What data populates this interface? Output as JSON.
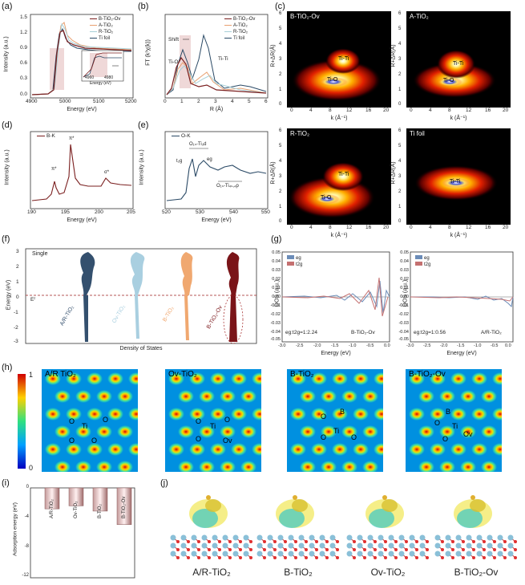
{
  "panel_labels": [
    "(a)",
    "(b)",
    "(c)",
    "(d)",
    "(e)",
    "(f)",
    "(g)",
    "(h)",
    "(i)",
    "(j)"
  ],
  "panel_a": {
    "xlabel": "Energy (eV)",
    "ylabel": "Intensity (a.u.)",
    "xticks": [
      "4900",
      "5000",
      "5100",
      "5200"
    ],
    "yticks": [
      "0.0",
      "0.3",
      "0.6",
      "0.9",
      "1.2",
      "1.5"
    ],
    "legend": [
      "B-TiO₂-Ov",
      "A-TiO₂",
      "R-TiO₂",
      "Ti foil"
    ],
    "inset_xticks": [
      "4960",
      "4980"
    ],
    "inset_xlabel": "Energy (eV)",
    "colors": [
      "#7a1f1f",
      "#e8a070",
      "#a8d0d8",
      "#2b4a66"
    ]
  },
  "panel_b": {
    "xlabel": "R (Å)",
    "ylabel": "FT (k³χ(k))",
    "xticks": [
      "0",
      "1",
      "2",
      "3",
      "4",
      "5",
      "6"
    ],
    "legend": [
      "B-TiO₂-Ov",
      "A-TiO₂",
      "R-TiO₂",
      "Ti foil"
    ],
    "annotations": [
      "Shift",
      "Ti-O",
      "Ti-Ti"
    ]
  },
  "panel_c": {
    "maps": [
      {
        "title": "B-TiO₂-Ov",
        "labels": [
          "Ti-Ti",
          "Ti-O"
        ]
      },
      {
        "title": "A-TiO₂",
        "labels": [
          "Ti-Ti",
          "Ti-O"
        ]
      },
      {
        "title": "R-TiO₂",
        "labels": [
          "Ti-Ti",
          "Ti-O"
        ]
      },
      {
        "title": "Ti foil",
        "labels": [
          "Ti-Ti"
        ]
      }
    ],
    "xlabel": "k (Å⁻¹)",
    "ylabel": "R+ΔR(Å)",
    "xticks": [
      "0",
      "4",
      "8",
      "12",
      "16",
      "20"
    ],
    "yticks": [
      "0",
      "1",
      "2",
      "3",
      "4",
      "5",
      "6"
    ]
  },
  "panel_d": {
    "legend": "B-K",
    "xlabel": "Energy (eV)",
    "ylabel": "Intensity (a.u.)",
    "xticks": [
      "190",
      "195",
      "200",
      "205"
    ],
    "peaks": [
      "π*",
      "π*",
      "σ*"
    ]
  },
  "panel_e": {
    "legend": "O-K",
    "xlabel": "Energy (eV)",
    "ylabel": "Intensity (a.u.)",
    "xticks": [
      "520",
      "530",
      "540",
      "550"
    ],
    "labels": [
      "O₁ₛ-Ti₃d",
      "t₂g",
      "eg",
      "O₁ₛ-Ti₄ₛ,₄p"
    ]
  },
  "panel_f": {
    "ylabel": "Energy (eV)",
    "xlabel": "Density of States",
    "yticks": [
      "3",
      "2",
      "1",
      "0",
      "-1",
      "-2",
      "-3"
    ],
    "single": "Single",
    "ef": "Eᶠ",
    "series": [
      "A/R-TiO₂",
      "Ov-TiO₂",
      "B-TiO₂",
      "B-TiO₂-Ov"
    ],
    "colors": [
      "#34506e",
      "#a9cfe0",
      "#f0a870",
      "#7a1418"
    ]
  },
  "panel_g": {
    "ylabel": "DOS (a.u.)",
    "xlabel": "Energy (eV)",
    "yticks": [
      "0.05",
      "0.04",
      "0.03",
      "0.02",
      "0.01",
      "0.00",
      "-0.01",
      "-0.02",
      "-0.03",
      "-0.04",
      "-0.05"
    ],
    "xticks": [
      "-3.0",
      "-2.5",
      "-2.0",
      "-1.5",
      "-1.0",
      "-0.5",
      "0.0"
    ],
    "legend": [
      "eg",
      "t2g"
    ],
    "left_ratio": "eg:t2g=1:2.24",
    "left_name": "B-TiO₂-Ov",
    "right_ratio": "eg:t2g=1:0.56",
    "right_name": "A/R-TiO₂"
  },
  "panel_h": {
    "colorbar_max": "1",
    "colorbar_min": "0",
    "maps": [
      {
        "title": "A/R TiO₂",
        "atoms": [
          "O",
          "O",
          "Ti",
          "O",
          "O"
        ]
      },
      {
        "title": "Ov-TiO₂",
        "atoms": [
          "O",
          "O",
          "Ti",
          "O",
          "Ov"
        ]
      },
      {
        "title": "B-TiO₂",
        "atoms": [
          "O",
          "B",
          "Ti",
          "O",
          "O"
        ]
      },
      {
        "title": "B-TiO₂-Ov",
        "atoms": [
          "B",
          "O",
          "Ti",
          "O",
          "Ov"
        ]
      }
    ]
  },
  "panel_i": {
    "ylabel": "Adsorption energy (eV)",
    "yticks": [
      "0",
      "-4",
      "-8",
      "-12"
    ],
    "chart_data": {
      "type": "bar",
      "categories": [
        "A/R-TiO₂",
        "Ov-TiO₂",
        "B-TiO₂",
        "B-TiO₂-Ov"
      ],
      "values": [
        -2.8,
        -2.4,
        -3.1,
        -4.9
      ],
      "ylabel": "Adsorption energy (eV)",
      "ylim": [
        -12,
        0
      ]
    }
  },
  "panel_j": {
    "labels": [
      "A/R-TiO₂",
      "B-TiO₂",
      "Ov-TiO₂",
      "B-TiO₂-Ov"
    ]
  }
}
